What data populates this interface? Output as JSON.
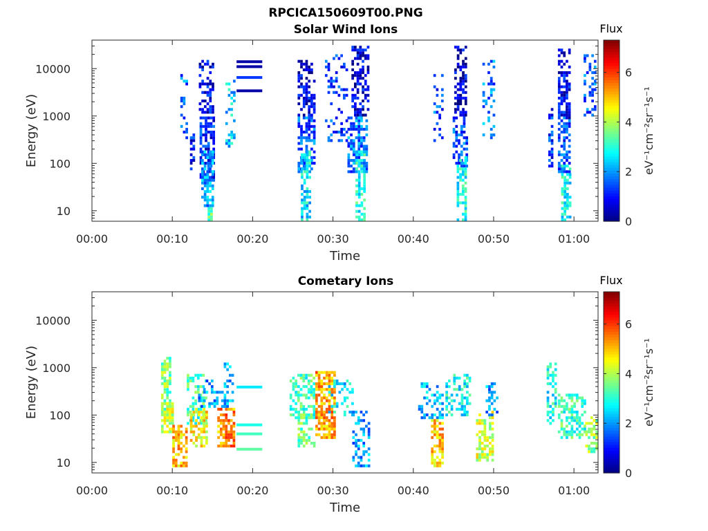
{
  "figure_title": "RPCICA150609T00.PNG",
  "colors": {
    "frame": "#262626",
    "background": "#ffffff"
  },
  "colormap": "jet",
  "chart_data": [
    {
      "type": "heatmap",
      "title": "Solar Wind Ions",
      "xlabel": "Time",
      "ylabel": "Energy (eV)",
      "x_ticks": [
        "00:00",
        "00:10",
        "00:20",
        "00:30",
        "00:40",
        "00:50",
        "01:00"
      ],
      "x_tick_minutes": [
        0,
        10,
        20,
        30,
        40,
        50,
        60
      ],
      "xlim_minutes": [
        0,
        63
      ],
      "y_scale": "log",
      "y_ticks": [
        "10",
        "100",
        "1000",
        "10000"
      ],
      "y_tick_values": [
        10,
        100,
        1000,
        10000
      ],
      "ylim": [
        6,
        40000
      ],
      "colorbar": {
        "title": "Flux",
        "label": "eV⁻¹cm⁻²sr⁻¹s⁻¹",
        "ticks": [
          0,
          2,
          4,
          6
        ],
        "range": [
          0,
          7.3
        ]
      },
      "bursts": [
        {
          "minute": 9.2,
          "span": 0.3,
          "emin": 800,
          "emax": 1000,
          "level": 0.6,
          "density": 0.6
        },
        {
          "minute": 11.0,
          "span": 0.8,
          "emin": 300,
          "emax": 9000,
          "level": 1.6,
          "density": 0.25
        },
        {
          "minute": 12.2,
          "span": 0.4,
          "emin": 60,
          "emax": 400,
          "level": 1.0,
          "density": 0.5
        },
        {
          "minute": 13.3,
          "span": 1.8,
          "emin": 1000,
          "emax": 15000,
          "level": 0.8,
          "density": 0.5
        },
        {
          "minute": 13.4,
          "span": 1.8,
          "emin": 40,
          "emax": 1000,
          "level": 1.1,
          "density": 0.7
        },
        {
          "minute": 13.6,
          "span": 1.3,
          "emin": 12,
          "emax": 200,
          "level": 2.1,
          "density": 0.65
        },
        {
          "minute": 14.4,
          "span": 0.4,
          "emin": 6,
          "emax": 12,
          "level": 3.5,
          "density": 1.0
        },
        {
          "minute": 16.6,
          "span": 1.0,
          "emin": 200,
          "emax": 6000,
          "level": 2.4,
          "density": 0.3
        },
        {
          "minute": 25.6,
          "span": 2.0,
          "emin": 1000,
          "emax": 15000,
          "level": 0.7,
          "density": 0.5
        },
        {
          "minute": 25.6,
          "span": 2.0,
          "emin": 60,
          "emax": 1000,
          "level": 1.5,
          "density": 0.6
        },
        {
          "minute": 26.0,
          "span": 1.0,
          "emin": 6,
          "emax": 200,
          "level": 2.6,
          "density": 0.6
        },
        {
          "minute": 29.0,
          "span": 2.6,
          "emin": 300,
          "emax": 20000,
          "level": 1.3,
          "density": 0.25
        },
        {
          "minute": 32.3,
          "span": 2.0,
          "emin": 1000,
          "emax": 30000,
          "level": 0.7,
          "density": 0.55
        },
        {
          "minute": 31.8,
          "span": 2.4,
          "emin": 60,
          "emax": 1000,
          "level": 1.7,
          "density": 0.6
        },
        {
          "minute": 32.8,
          "span": 1.2,
          "emin": 6,
          "emax": 200,
          "level": 2.9,
          "density": 0.6
        },
        {
          "minute": 42.5,
          "span": 1.2,
          "emin": 300,
          "emax": 8000,
          "level": 1.4,
          "density": 0.25
        },
        {
          "minute": 45.1,
          "span": 1.6,
          "emin": 1000,
          "emax": 30000,
          "level": 0.6,
          "density": 0.55
        },
        {
          "minute": 44.9,
          "span": 1.8,
          "emin": 80,
          "emax": 1000,
          "level": 1.4,
          "density": 0.55
        },
        {
          "minute": 45.4,
          "span": 1.0,
          "emin": 6,
          "emax": 150,
          "level": 2.8,
          "density": 0.55
        },
        {
          "minute": 48.6,
          "span": 1.4,
          "emin": 300,
          "emax": 15000,
          "level": 1.8,
          "density": 0.3
        },
        {
          "minute": 56.8,
          "span": 0.6,
          "emin": 80,
          "emax": 1500,
          "level": 1.2,
          "density": 0.4
        },
        {
          "minute": 58.0,
          "span": 1.6,
          "emin": 800,
          "emax": 25000,
          "level": 0.8,
          "density": 0.55
        },
        {
          "minute": 58.0,
          "span": 1.6,
          "emin": 60,
          "emax": 1000,
          "level": 1.4,
          "density": 0.55
        },
        {
          "minute": 58.4,
          "span": 1.0,
          "emin": 6,
          "emax": 100,
          "level": 2.8,
          "density": 0.55
        },
        {
          "minute": 61.2,
          "span": 1.6,
          "emin": 1000,
          "emax": 20000,
          "level": 1.6,
          "density": 0.3
        }
      ],
      "bands": [
        {
          "minute": 18.0,
          "span": 3.2,
          "energy": 14000,
          "level": 0.3
        },
        {
          "minute": 18.0,
          "span": 3.2,
          "energy": 11000,
          "level": 0.3
        },
        {
          "minute": 18.0,
          "span": 3.2,
          "energy": 6500,
          "level": 1.3
        },
        {
          "minute": 18.0,
          "span": 3.2,
          "energy": 3400,
          "level": 0.3
        }
      ]
    },
    {
      "type": "heatmap",
      "title": "Cometary Ions",
      "xlabel": "Time",
      "ylabel": "Energy (eV)",
      "x_ticks": [
        "00:00",
        "00:10",
        "00:20",
        "00:30",
        "00:40",
        "00:50",
        "01:00"
      ],
      "x_tick_minutes": [
        0,
        10,
        20,
        30,
        40,
        50,
        60
      ],
      "xlim_minutes": [
        0,
        63
      ],
      "y_scale": "log",
      "y_ticks": [
        "10",
        "100",
        "1000",
        "10000"
      ],
      "y_tick_values": [
        10,
        100,
        1000,
        10000
      ],
      "ylim": [
        6,
        40000
      ],
      "colorbar": {
        "title": "Flux",
        "label": "eV⁻¹cm⁻²sr⁻¹s⁻¹",
        "ticks": [
          0,
          2,
          4,
          6
        ],
        "range": [
          0,
          7.3
        ]
      },
      "bursts": [
        {
          "minute": 8.6,
          "span": 1.0,
          "emin": 100,
          "emax": 1700,
          "level": 3.6,
          "density": 0.6
        },
        {
          "minute": 8.6,
          "span": 1.4,
          "emin": 40,
          "emax": 200,
          "level": 4.2,
          "density": 0.7
        },
        {
          "minute": 10.0,
          "span": 1.8,
          "emin": 8,
          "emax": 60,
          "level": 5.0,
          "density": 0.6
        },
        {
          "minute": 11.8,
          "span": 2.4,
          "emin": 60,
          "emax": 700,
          "level": 3.2,
          "density": 0.45
        },
        {
          "minute": 12.2,
          "span": 2.0,
          "emin": 20,
          "emax": 150,
          "level": 4.6,
          "density": 0.6
        },
        {
          "minute": 13.2,
          "span": 3.5,
          "emin": 150,
          "emax": 600,
          "level": 2.0,
          "density": 0.35
        },
        {
          "minute": 15.6,
          "span": 2.2,
          "emin": 20,
          "emax": 150,
          "level": 5.4,
          "density": 0.7
        },
        {
          "minute": 16.4,
          "span": 1.2,
          "emin": 150,
          "emax": 1200,
          "level": 2.2,
          "density": 0.35
        },
        {
          "minute": 24.6,
          "span": 3.0,
          "emin": 80,
          "emax": 700,
          "level": 3.2,
          "density": 0.45
        },
        {
          "minute": 25.6,
          "span": 2.0,
          "emin": 20,
          "emax": 120,
          "level": 3.4,
          "density": 0.5
        },
        {
          "minute": 27.8,
          "span": 2.4,
          "emin": 30,
          "emax": 800,
          "level": 5.2,
          "density": 0.7
        },
        {
          "minute": 29.4,
          "span": 3.2,
          "emin": 100,
          "emax": 600,
          "level": 2.6,
          "density": 0.4
        },
        {
          "minute": 32.4,
          "span": 2.0,
          "emin": 8,
          "emax": 120,
          "level": 2.0,
          "density": 0.45
        },
        {
          "minute": 40.6,
          "span": 3.0,
          "emin": 80,
          "emax": 500,
          "level": 2.2,
          "density": 0.4
        },
        {
          "minute": 42.2,
          "span": 1.6,
          "emin": 8,
          "emax": 80,
          "level": 5.0,
          "density": 0.6
        },
        {
          "minute": 44.0,
          "span": 3.0,
          "emin": 100,
          "emax": 700,
          "level": 2.8,
          "density": 0.4
        },
        {
          "minute": 47.8,
          "span": 2.0,
          "emin": 10,
          "emax": 120,
          "level": 4.2,
          "density": 0.6
        },
        {
          "minute": 49.0,
          "span": 1.8,
          "emin": 100,
          "emax": 500,
          "level": 2.0,
          "density": 0.4
        },
        {
          "minute": 56.6,
          "span": 1.2,
          "emin": 60,
          "emax": 1300,
          "level": 2.8,
          "density": 0.5
        },
        {
          "minute": 58.0,
          "span": 3.4,
          "emin": 30,
          "emax": 300,
          "level": 3.2,
          "density": 0.5
        },
        {
          "minute": 61.4,
          "span": 1.6,
          "emin": 15,
          "emax": 100,
          "level": 3.8,
          "density": 0.6
        }
      ],
      "bands": [
        {
          "minute": 18.0,
          "span": 3.2,
          "energy": 390,
          "level": 2.6
        },
        {
          "minute": 18.0,
          "span": 3.2,
          "energy": 62,
          "level": 2.9
        },
        {
          "minute": 18.0,
          "span": 3.2,
          "energy": 40,
          "level": 3.2
        },
        {
          "minute": 18.0,
          "span": 3.2,
          "energy": 19,
          "level": 3.4
        }
      ]
    }
  ]
}
